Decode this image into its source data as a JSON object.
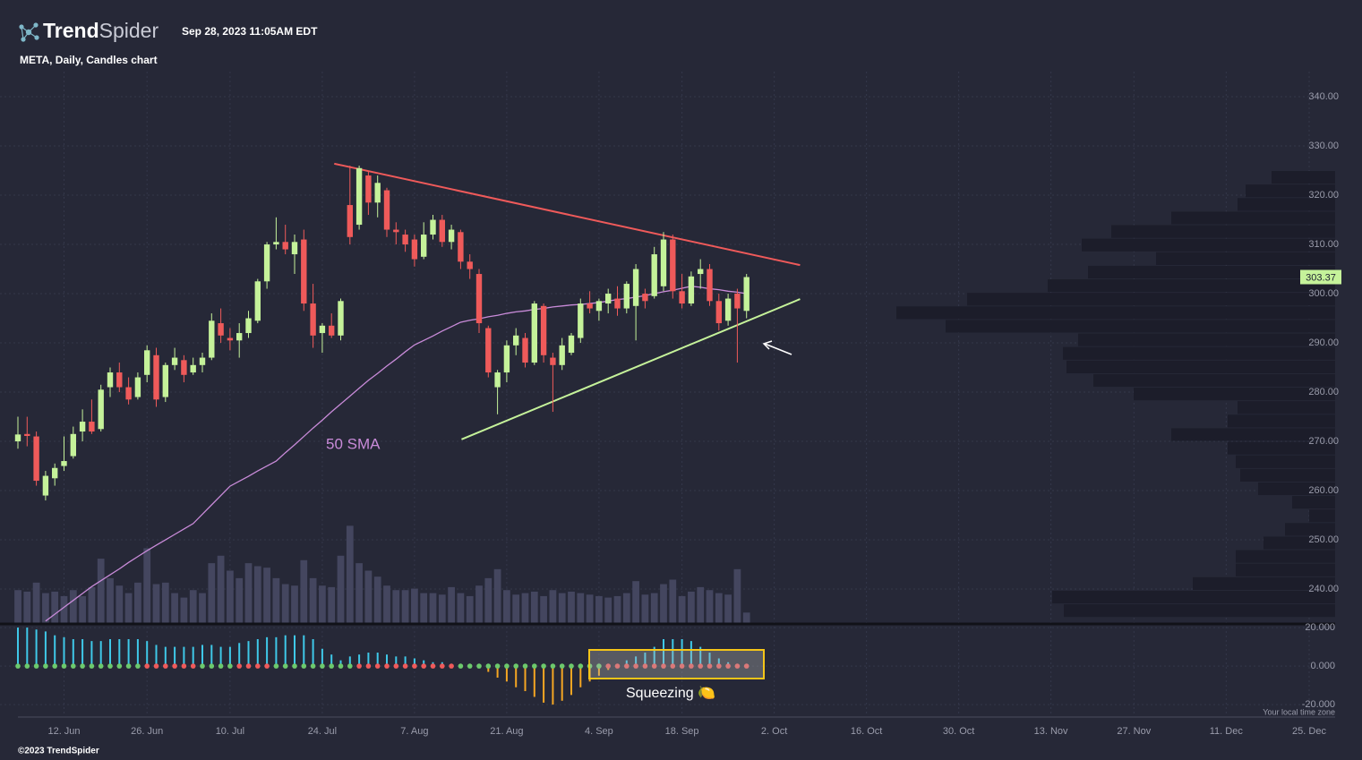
{
  "header": {
    "brand_a": "Trend",
    "brand_b": "Spider",
    "timestamp": "Sep 28, 2023 11:05AM EDT"
  },
  "footer": {
    "copyright": "©2023 TrendSpider",
    "timezone_note": "Your local time zone"
  },
  "annotations": {
    "sma_label": "50 SMA",
    "squeeze_label": "Squeezing 🍋"
  },
  "chart_data": {
    "type": "candlestick",
    "title": "META, Daily, Candles chart",
    "up_color": "#c5f29a",
    "down_color": "#ef5a5a",
    "open": [
      270.0,
      271.5,
      271.0,
      259.0,
      262.5,
      265.0,
      267.0,
      272.0,
      274.0,
      272.5,
      281.0,
      284.0,
      281.0,
      279.0,
      283.5,
      287.5,
      279.0,
      285.5,
      286.5,
      284.0,
      285.5,
      287.0,
      294.0,
      291.0,
      290.5,
      292.0,
      294.5,
      302.5,
      310.0,
      310.5,
      308.0,
      311.0,
      298.0,
      292.0,
      293.5,
      291.5,
      318.0,
      314.0,
      324.0,
      318.5,
      321.0,
      313.0,
      312.0,
      311.0,
      307.5,
      312.0,
      315.0,
      310.5,
      312.5,
      306.5,
      304.0,
      293.0,
      281.0,
      284.0,
      289.5,
      291.0,
      286.0,
      297.5,
      287.0,
      285.5,
      288.0,
      291.0,
      298.0,
      296.5,
      298.0,
      299.0,
      297.0,
      297.5,
      300.0,
      299.5,
      301.5,
      311.0,
      300.5,
      298.0,
      304.0,
      305.0,
      298.5,
      294.5,
      300.0,
      296.5
    ],
    "high": [
      275.0,
      275.0,
      272.0,
      264.0,
      265.5,
      271.0,
      273.0,
      276.5,
      278.5,
      281.5,
      285.0,
      286.0,
      283.0,
      284.0,
      289.5,
      289.0,
      286.0,
      289.0,
      287.5,
      287.0,
      288.0,
      296.0,
      297.0,
      293.0,
      294.0,
      296.5,
      303.0,
      310.5,
      315.5,
      314.0,
      312.0,
      313.0,
      302.0,
      294.0,
      296.0,
      299.0,
      326.0,
      326.0,
      325.0,
      324.0,
      321.5,
      314.5,
      313.0,
      312.0,
      314.5,
      316.0,
      316.0,
      314.0,
      313.0,
      308.0,
      305.0,
      293.5,
      284.5,
      290.5,
      293.0,
      292.0,
      298.5,
      298.0,
      288.0,
      291.0,
      292.0,
      299.0,
      300.5,
      299.0,
      301.0,
      301.5,
      302.5,
      306.0,
      301.0,
      309.5,
      312.5,
      312.0,
      304.0,
      304.5,
      307.0,
      306.0,
      300.0,
      300.0,
      301.0,
      304.0
    ],
    "low": [
      268.5,
      269.0,
      261.0,
      258.0,
      261.0,
      264.0,
      266.5,
      270.0,
      271.5,
      272.0,
      279.0,
      280.0,
      277.5,
      278.5,
      282.0,
      277.0,
      278.0,
      284.5,
      282.0,
      283.5,
      284.0,
      286.5,
      290.0,
      288.5,
      287.0,
      291.0,
      294.0,
      301.0,
      309.0,
      308.0,
      304.0,
      296.5,
      289.0,
      288.0,
      291.0,
      290.5,
      310.0,
      313.0,
      316.0,
      315.5,
      311.5,
      310.0,
      308.5,
      305.5,
      307.0,
      311.0,
      309.5,
      309.0,
      305.0,
      303.0,
      292.0,
      283.0,
      275.5,
      282.0,
      287.5,
      285.0,
      285.5,
      286.0,
      276.0,
      284.5,
      287.5,
      290.0,
      296.0,
      294.5,
      296.0,
      295.5,
      296.0,
      290.5,
      297.0,
      299.0,
      300.5,
      299.0,
      297.0,
      297.5,
      301.0,
      297.5,
      292.5,
      293.5,
      286.0,
      295.0
    ],
    "close": [
      271.4,
      271.1,
      262.0,
      263.0,
      264.6,
      266.0,
      271.5,
      274.0,
      272.0,
      280.5,
      284.0,
      281.0,
      278.5,
      283.0,
      288.5,
      278.5,
      285.5,
      287.0,
      283.5,
      285.5,
      287.0,
      294.5,
      291.5,
      290.5,
      292.0,
      295.0,
      302.5,
      310.0,
      310.5,
      309.0,
      310.5,
      298.0,
      291.5,
      293.5,
      291.5,
      298.5,
      311.5,
      325.5,
      318.5,
      322.5,
      313.0,
      312.5,
      310.0,
      307.0,
      312.0,
      315.0,
      310.5,
      313.0,
      306.5,
      305.0,
      294.0,
      284.0,
      284.0,
      289.5,
      291.5,
      286.0,
      298.0,
      287.5,
      285.5,
      289.5,
      291.5,
      298.0,
      297.0,
      298.5,
      300.0,
      297.0,
      302.0,
      305.0,
      298.5,
      308.0,
      311.0,
      300.5,
      298.0,
      303.5,
      305.0,
      298.5,
      294.0,
      299.0,
      297.0,
      303.37
    ],
    "volume": [
      22,
      21,
      27,
      20,
      21,
      18,
      22,
      18,
      24,
      43,
      30,
      25,
      20,
      27,
      50,
      26,
      27,
      20,
      17,
      22,
      20,
      40,
      45,
      35,
      30,
      40,
      38,
      37,
      30,
      26,
      25,
      42,
      30,
      25,
      24,
      45,
      65,
      40,
      35,
      31,
      25,
      22,
      22,
      23,
      20,
      20,
      19,
      24,
      20,
      18,
      25,
      30,
      36,
      22,
      19,
      20,
      21,
      18,
      22,
      20,
      21,
      20,
      19,
      18,
      17,
      18,
      20,
      28,
      19,
      20,
      26,
      29,
      18,
      21,
      24,
      22,
      20,
      19,
      36,
      7
    ],
    "volume_color": "#44465f",
    "vlim": [
      0,
      70
    ],
    "sma": {
      "name": "50 SMA",
      "color": "#c98bd9",
      "values": [
        null,
        null,
        null,
        233.5,
        234.9,
        236.3,
        237.7,
        239.1,
        240.5,
        241.7,
        242.9,
        244.1,
        245.4,
        246.6,
        247.8,
        248.9,
        250,
        251.1,
        252.2,
        253.3,
        255.2,
        257.1,
        259,
        260.9,
        261.9,
        262.9,
        264,
        265,
        266,
        267.7,
        269.3,
        271,
        272.7,
        274.3,
        276,
        277.6,
        279.2,
        280.8,
        282.4,
        283.8,
        285.3,
        286.7,
        288.2,
        289.6,
        290.5,
        291.4,
        292.4,
        293.3,
        294.2,
        294.6,
        294.9,
        295.3,
        295.6,
        296,
        296.3,
        296.5,
        296.8,
        297,
        297.3,
        297.5,
        297.7,
        297.8,
        298,
        298.2,
        298.5,
        298.8,
        299,
        299.3,
        299.6,
        300,
        300.4,
        300.7,
        301.1,
        301.5,
        301.3,
        301,
        300.8,
        300.5,
        300.3,
        300
      ]
    },
    "trendlines": [
      {
        "color": "#ef5a5a",
        "x": [
          34.3,
          84.8
        ],
        "y": [
          326.4,
          305.8
        ]
      },
      {
        "color": "#c5f29a",
        "x": [
          48.1,
          84.8
        ],
        "y": [
          270.4,
          298.9
        ]
      }
    ],
    "xlim": [
      0,
      142
    ],
    "xticks": [
      {
        "value": 5,
        "label": "12. Jun"
      },
      {
        "value": 14,
        "label": "26. Jun"
      },
      {
        "value": 23,
        "label": "10. Jul"
      },
      {
        "value": 33,
        "label": "24. Jul"
      },
      {
        "value": 43,
        "label": "7. Aug"
      },
      {
        "value": 53,
        "label": "21. Aug"
      },
      {
        "value": 63,
        "label": "4. Sep"
      },
      {
        "value": 72,
        "label": "18. Sep"
      },
      {
        "value": 82,
        "label": "2. Oct"
      },
      {
        "value": 92,
        "label": "16. Oct"
      },
      {
        "value": 102,
        "label": "30. Oct"
      },
      {
        "value": 112,
        "label": "13. Nov"
      },
      {
        "value": 121,
        "label": "27. Nov"
      },
      {
        "value": 131,
        "label": "11. Dec"
      },
      {
        "value": 140,
        "label": "25. Dec"
      }
    ],
    "ylim": [
      233.1,
      345.1
    ],
    "yticks": [
      {
        "value": 240,
        "label": "240.00"
      },
      {
        "value": 250,
        "label": "250.00"
      },
      {
        "value": 260,
        "label": "260.00"
      },
      {
        "value": 270,
        "label": "270.00"
      },
      {
        "value": 280,
        "label": "280.00"
      },
      {
        "value": 290,
        "label": "290.00"
      },
      {
        "value": 300,
        "label": "300.00"
      },
      {
        "value": 310,
        "label": "310.00"
      },
      {
        "value": 320,
        "label": "320.00"
      },
      {
        "value": 330,
        "label": "330.00"
      },
      {
        "value": 340,
        "label": "340.00"
      }
    ],
    "grid": true,
    "volume_profile": {
      "color": "#1c1d2a",
      "lim": [
        0,
        500
      ],
      "bins": [
        325,
        322.25,
        319.5,
        316.75,
        314,
        311.25,
        308.5,
        305.75,
        303,
        300.25,
        297.5,
        294.75,
        292,
        289.25,
        286.5,
        283.75,
        281,
        278.25,
        275.5,
        272.75,
        270,
        267.25,
        264.5,
        261.75,
        259,
        256.25,
        253.5,
        250.75,
        248,
        245.25,
        242.5,
        239.75,
        237,
        234.25
      ],
      "values": [
        71,
        100,
        109,
        183,
        250,
        283,
        200,
        276,
        321,
        411,
        490,
        435,
        287,
        304,
        300,
        270,
        225,
        109,
        120,
        183,
        120,
        111,
        106,
        86,
        48,
        29,
        56,
        80,
        111,
        111,
        159,
        316,
        303
      ]
    },
    "squeeze": {
      "pos_color": "#3fc8e8",
      "neg_color": "#f5a623",
      "on_color": "#ef5a5a",
      "off_color": "#6cc96c",
      "ylim": [
        -26,
        21.9
      ],
      "yticks": [
        {
          "value": 20,
          "label": "20.000"
        },
        {
          "value": 0,
          "label": "0.000"
        },
        {
          "value": -20,
          "label": "-20.000"
        }
      ],
      "momentum": [
        20,
        20,
        19,
        18,
        16,
        15,
        14,
        14,
        13,
        13,
        14,
        14,
        14,
        14,
        13,
        11,
        10,
        10,
        10,
        10,
        11,
        11,
        10,
        10,
        12,
        13,
        14,
        15,
        15,
        16,
        16,
        16,
        14,
        9,
        6,
        3,
        5,
        6,
        7,
        7,
        6,
        5,
        5,
        4,
        3,
        2,
        2,
        1,
        0.5,
        0,
        -1,
        -3,
        -6,
        -8,
        -11,
        -13,
        -16,
        -19,
        -20,
        -18,
        -15,
        -11,
        -8,
        -5,
        -2,
        1,
        3,
        5,
        7,
        10,
        14,
        14,
        14,
        13,
        10,
        7,
        4,
        2,
        1,
        1
      ],
      "on": [
        false,
        false,
        false,
        false,
        false,
        false,
        false,
        false,
        false,
        false,
        false,
        false,
        false,
        false,
        true,
        true,
        true,
        true,
        true,
        true,
        false,
        false,
        false,
        false,
        true,
        true,
        true,
        true,
        false,
        false,
        false,
        false,
        false,
        false,
        false,
        false,
        false,
        true,
        true,
        true,
        true,
        true,
        true,
        true,
        true,
        true,
        true,
        true,
        false,
        false,
        false,
        false,
        false,
        false,
        false,
        false,
        false,
        false,
        false,
        false,
        false,
        false,
        false,
        false,
        true,
        true,
        true,
        true,
        true,
        true,
        true,
        true,
        true,
        true,
        true,
        true,
        true,
        true,
        true,
        true
      ]
    }
  }
}
